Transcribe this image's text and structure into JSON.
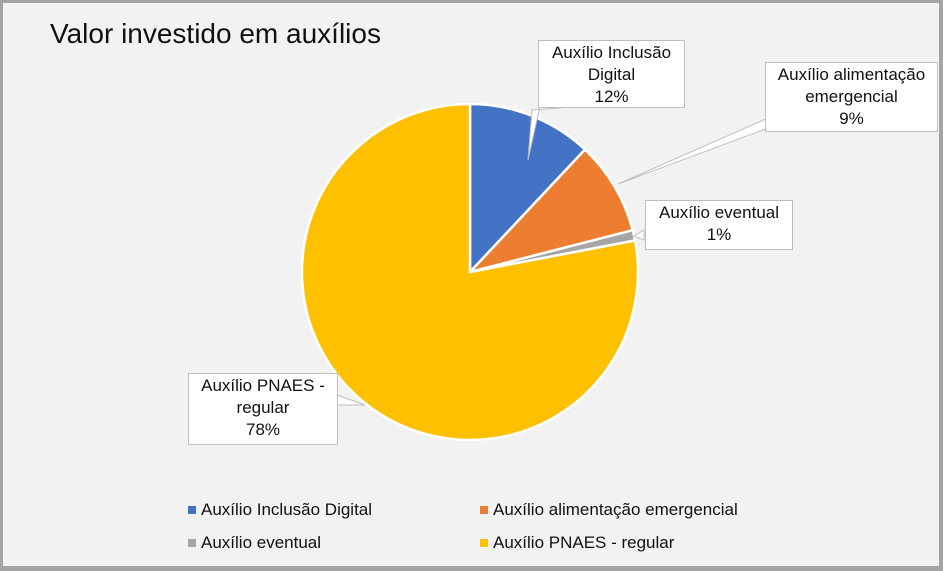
{
  "chart_data": {
    "type": "pie",
    "title": "Valor investido em auxílios",
    "categories": [
      "Auxílio Inclusão Digital",
      "Auxílio alimentação emergencial",
      "Auxílio eventual",
      "Auxílio PNAES - regular"
    ],
    "values": [
      12,
      9,
      1,
      78
    ],
    "unit": "%",
    "colors": [
      "#4472c4",
      "#ed7d31",
      "#a5a5a5",
      "#ffc000"
    ],
    "legend_position": "bottom"
  },
  "labels": [
    {
      "l1": "Auxílio Inclusão",
      "l2": "Digital",
      "pct": "12%"
    },
    {
      "l1": "Auxílio alimentação",
      "l2": "emergencial",
      "pct": "9%"
    },
    {
      "l1": "Auxílio eventual",
      "pct": "1%"
    },
    {
      "l1": "Auxílio PNAES -",
      "l2": "regular",
      "pct": "78%"
    }
  ],
  "legend": [
    "Auxílio Inclusão Digital",
    "Auxílio alimentação emergencial",
    "Auxílio eventual",
    "Auxílio PNAES - regular"
  ]
}
